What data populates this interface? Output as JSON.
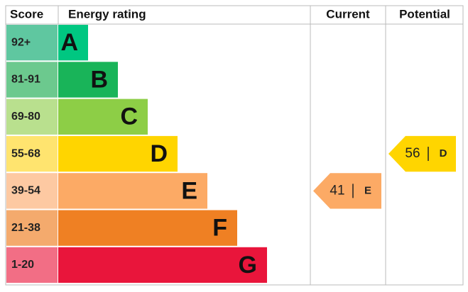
{
  "header": {
    "score": "Score",
    "rating": "Energy rating",
    "current": "Current",
    "potential": "Potential"
  },
  "bands": [
    {
      "range": "92+",
      "letter": "A",
      "color": "#00c781",
      "light": "#5fc7a0"
    },
    {
      "range": "81-91",
      "letter": "B",
      "color": "#19b459",
      "light": "#6cc98e"
    },
    {
      "range": "69-80",
      "letter": "C",
      "color": "#8dce46",
      "light": "#b9e08e"
    },
    {
      "range": "55-68",
      "letter": "D",
      "color": "#ffd500",
      "light": "#ffe46f"
    },
    {
      "range": "39-54",
      "letter": "E",
      "color": "#fcaa65",
      "light": "#fdc9a2"
    },
    {
      "range": "21-38",
      "letter": "F",
      "color": "#ef8023",
      "light": "#f4aa6d"
    },
    {
      "range": "1-20",
      "letter": "G",
      "color": "#e9153b",
      "light": "#f26e85"
    }
  ],
  "current": {
    "score": 41,
    "rating": "E"
  },
  "potential": {
    "score": 56,
    "rating": "D"
  }
}
